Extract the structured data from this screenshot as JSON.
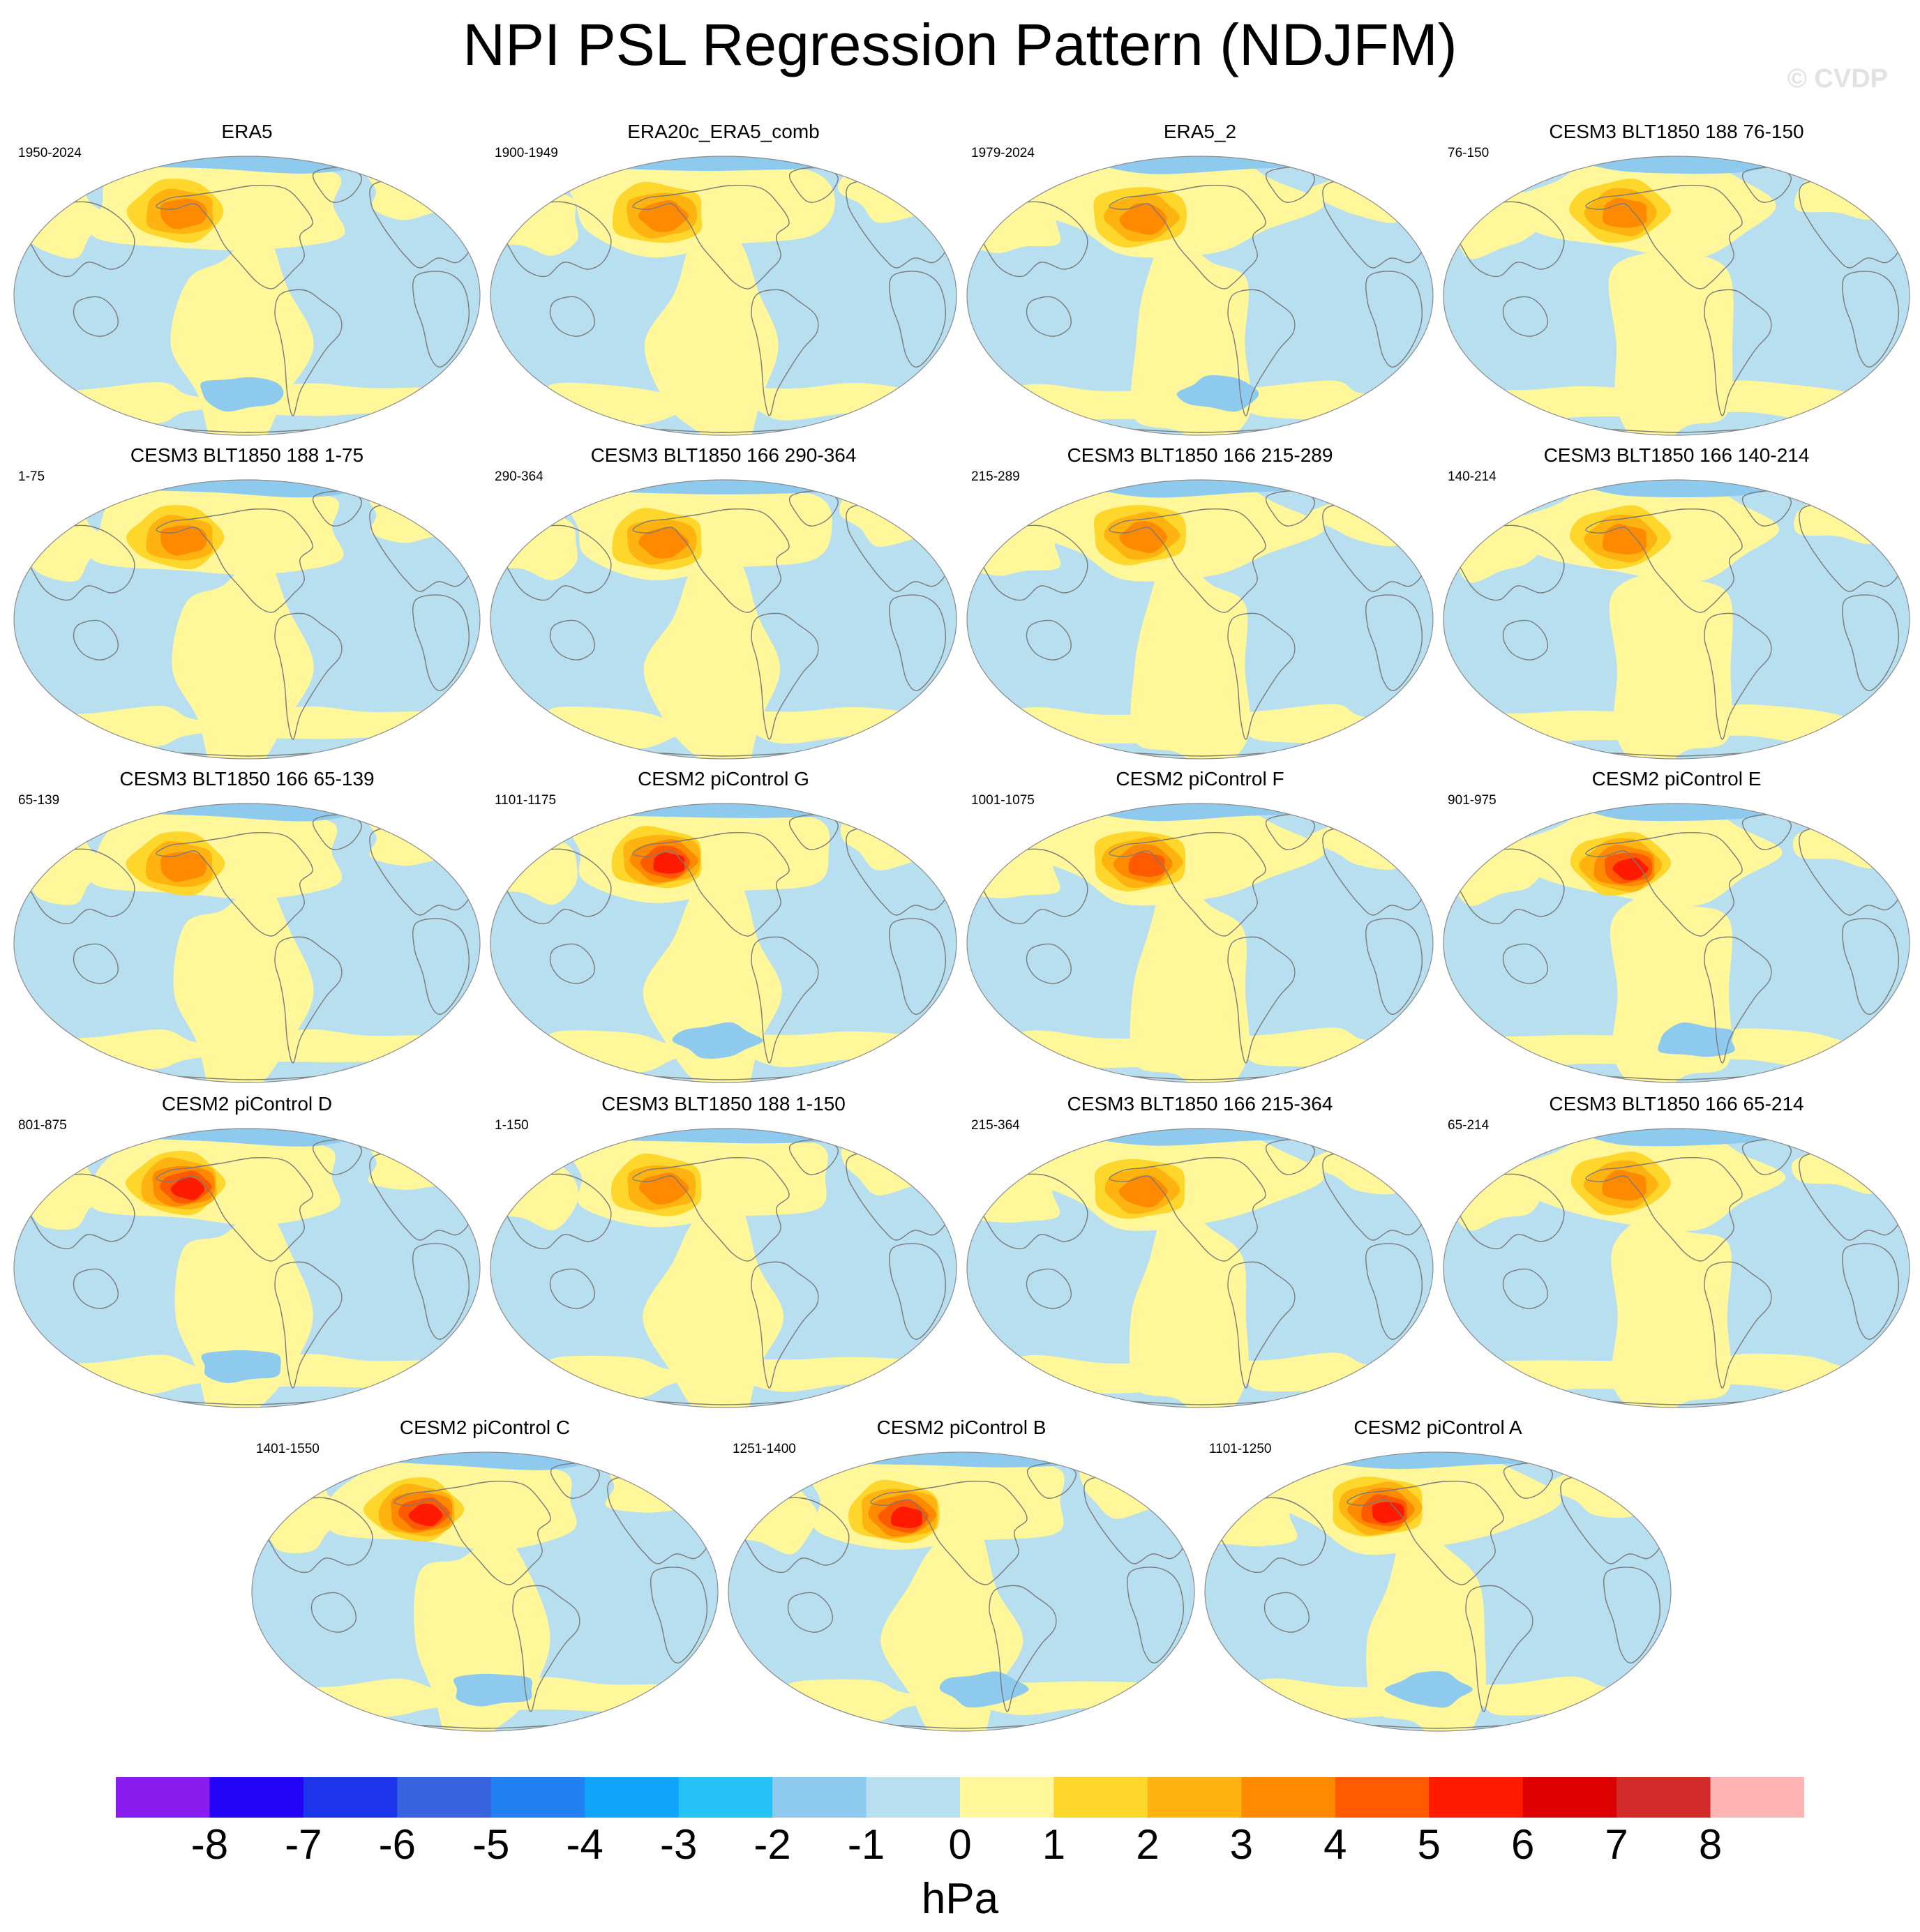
{
  "title": "NPI PSL Regression Pattern (NDJFM)",
  "watermark": "© CVDP",
  "colors": {
    "ocean": "#b7dff0",
    "positive_light": "#fff799",
    "negative_light": "#8dcaee",
    "land_outline": "#7a7a7a",
    "border": "#8c8c8c"
  },
  "icons": {
    "map": "world-map-icon",
    "colorbar": "color-scale-icon"
  },
  "panels": [
    {
      "title": "ERA5",
      "period": "1950-2024",
      "max_level": 3,
      "south_min": -1
    },
    {
      "title": "ERA20c_ERA5_comb",
      "period": "1900-1949",
      "max_level": 3,
      "south_min": 0
    },
    {
      "title": "ERA5_2",
      "period": "1979-2024",
      "max_level": 3,
      "south_min": -1
    },
    {
      "title": "CESM3 BLT1850 188 76-150",
      "period": "76-150",
      "max_level": 3,
      "south_min": 0
    },
    {
      "title": "CESM3 BLT1850 188 1-75",
      "period": "1-75",
      "max_level": 3,
      "south_min": 0
    },
    {
      "title": "CESM3 BLT1850 166 290-364",
      "period": "290-364",
      "max_level": 3,
      "south_min": 0
    },
    {
      "title": "CESM3 BLT1850 166 215-289",
      "period": "215-289",
      "max_level": 3,
      "south_min": 0
    },
    {
      "title": "CESM3 BLT1850 166 140-214",
      "period": "140-214",
      "max_level": 3,
      "south_min": 0
    },
    {
      "title": "CESM3 BLT1850 166 65-139",
      "period": "65-139",
      "max_level": 3,
      "south_min": 0
    },
    {
      "title": "CESM2 piControl G",
      "period": "1101-1175",
      "max_level": 5,
      "south_min": -1
    },
    {
      "title": "CESM2 piControl F",
      "period": "1001-1075",
      "max_level": 4,
      "south_min": 0
    },
    {
      "title": "CESM2 piControl E",
      "period": "901-975",
      "max_level": 5,
      "south_min": -1
    },
    {
      "title": "CESM2 piControl D",
      "period": "801-875",
      "max_level": 5,
      "south_min": -1
    },
    {
      "title": "CESM3 BLT1850 188 1-150",
      "period": "1-150",
      "max_level": 3,
      "south_min": 0
    },
    {
      "title": "CESM3 BLT1850 166 215-364",
      "period": "215-364",
      "max_level": 3,
      "south_min": 0
    },
    {
      "title": "CESM3 BLT1850 166 65-214",
      "period": "65-214",
      "max_level": 3,
      "south_min": 0
    },
    {
      "title": "CESM2 piControl C",
      "period": "1401-1550",
      "max_level": 5,
      "south_min": -1
    },
    {
      "title": "CESM2 piControl B",
      "period": "1251-1400",
      "max_level": 5,
      "south_min": -1
    },
    {
      "title": "CESM2 piControl A",
      "period": "1101-1250",
      "max_level": 5,
      "south_min": -1
    }
  ],
  "colorbar": {
    "units": "hPa",
    "labels": [
      "-8",
      "-7",
      "-6",
      "-5",
      "-4",
      "-3",
      "-2",
      "-1",
      "0",
      "1",
      "2",
      "3",
      "4",
      "5",
      "6",
      "7",
      "8"
    ],
    "colors": [
      "#8a1cf0",
      "#2404f6",
      "#1c34ea",
      "#3764de",
      "#2181f3",
      "#12a3fb",
      "#25c2f6",
      "#8dcaee",
      "#b7dff0",
      "#fff799",
      "#ffd62c",
      "#ffb310",
      "#ff8a00",
      "#ff5a00",
      "#ff1a00",
      "#dd0000",
      "#d32a2a",
      "#ffb4b4"
    ]
  }
}
